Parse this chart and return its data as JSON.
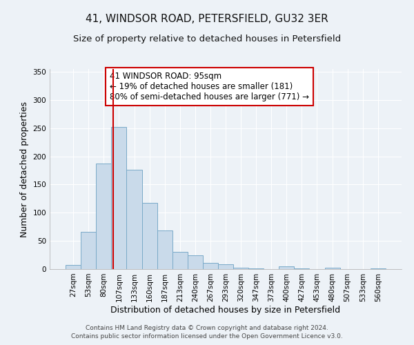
{
  "title": "41, WINDSOR ROAD, PETERSFIELD, GU32 3ER",
  "subtitle": "Size of property relative to detached houses in Petersfield",
  "xlabel": "Distribution of detached houses by size in Petersfield",
  "ylabel": "Number of detached properties",
  "categories": [
    "27sqm",
    "53sqm",
    "80sqm",
    "107sqm",
    "133sqm",
    "160sqm",
    "187sqm",
    "213sqm",
    "240sqm",
    "267sqm",
    "293sqm",
    "320sqm",
    "347sqm",
    "373sqm",
    "400sqm",
    "427sqm",
    "453sqm",
    "480sqm",
    "507sqm",
    "533sqm",
    "560sqm"
  ],
  "values": [
    7,
    66,
    187,
    252,
    176,
    118,
    69,
    31,
    24,
    11,
    9,
    2,
    1,
    0,
    5,
    1,
    0,
    3,
    0,
    0,
    1
  ],
  "bar_color": "#c9daea",
  "bar_edge_color": "#7aaac8",
  "vline_x": 2.62,
  "vline_color": "#cc0000",
  "annotation_text": "41 WINDSOR ROAD: 95sqm\n← 19% of detached houses are smaller (181)\n80% of semi-detached houses are larger (771) →",
  "annotation_box_color": "#ffffff",
  "annotation_box_edge": "#cc0000",
  "ylim": [
    0,
    355
  ],
  "yticks": [
    0,
    50,
    100,
    150,
    200,
    250,
    300,
    350
  ],
  "footer1": "Contains HM Land Registry data © Crown copyright and database right 2024.",
  "footer2": "Contains public sector information licensed under the Open Government Licence v3.0.",
  "bg_color": "#edf2f7",
  "grid_color": "#ffffff",
  "title_fontsize": 11,
  "subtitle_fontsize": 9.5,
  "label_fontsize": 9,
  "tick_fontsize": 7.5,
  "annotation_fontsize": 8.5,
  "footer_fontsize": 6.5
}
